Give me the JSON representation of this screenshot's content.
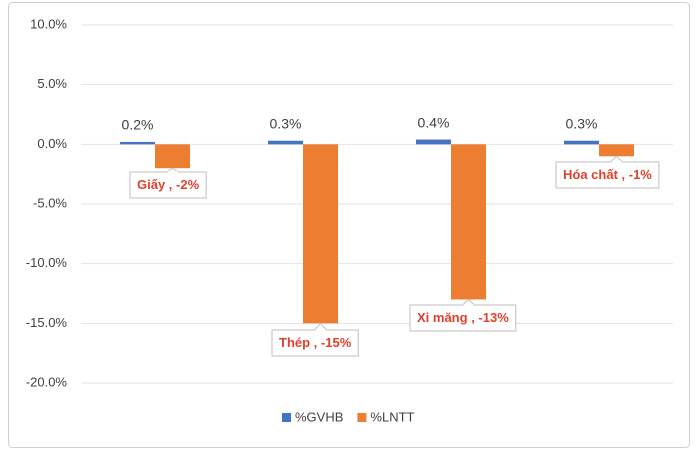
{
  "chart_data": {
    "type": "bar",
    "categories": [
      "Giấy",
      "Thép",
      "Xi măng",
      "Hóa chất"
    ],
    "series": [
      {
        "name": "%GVHB",
        "color": "#4472c4",
        "values": [
          0.2,
          0.3,
          0.4,
          0.3
        ],
        "value_labels": [
          "0.2%",
          "0.3%",
          "0.4%",
          "0.3%"
        ]
      },
      {
        "name": "%LNTT",
        "color": "#ed7d31",
        "values": [
          -2,
          -15,
          -13,
          -1
        ],
        "value_labels": [
          "-2%",
          "-15%",
          "-13%",
          "-1%"
        ],
        "label_separator": " , "
      }
    ],
    "ylim": [
      -20,
      10
    ],
    "yticks": [
      {
        "value": 10,
        "label": "10.0%"
      },
      {
        "value": 5,
        "label": "5.0%"
      },
      {
        "value": 0,
        "label": "0.0%"
      },
      {
        "value": -5,
        "label": "-5.0%"
      },
      {
        "value": -10,
        "label": "-10.0%"
      },
      {
        "value": -15,
        "label": "-15.0%"
      },
      {
        "value": -20,
        "label": "-20.0%"
      }
    ],
    "grid": true,
    "legend": "bottom"
  }
}
